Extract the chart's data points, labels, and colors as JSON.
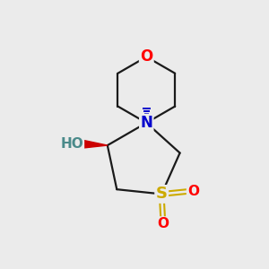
{
  "background_color": "#ebebeb",
  "bond_color": "#1a1a1a",
  "bond_width": 1.6,
  "atom_colors": {
    "O": "#ff0000",
    "N": "#0000cc",
    "S": "#ccaa00",
    "HO_color": "#4a8a8a",
    "C": "#1a1a1a"
  },
  "figsize": [
    3.0,
    3.0
  ],
  "dpi": 100
}
